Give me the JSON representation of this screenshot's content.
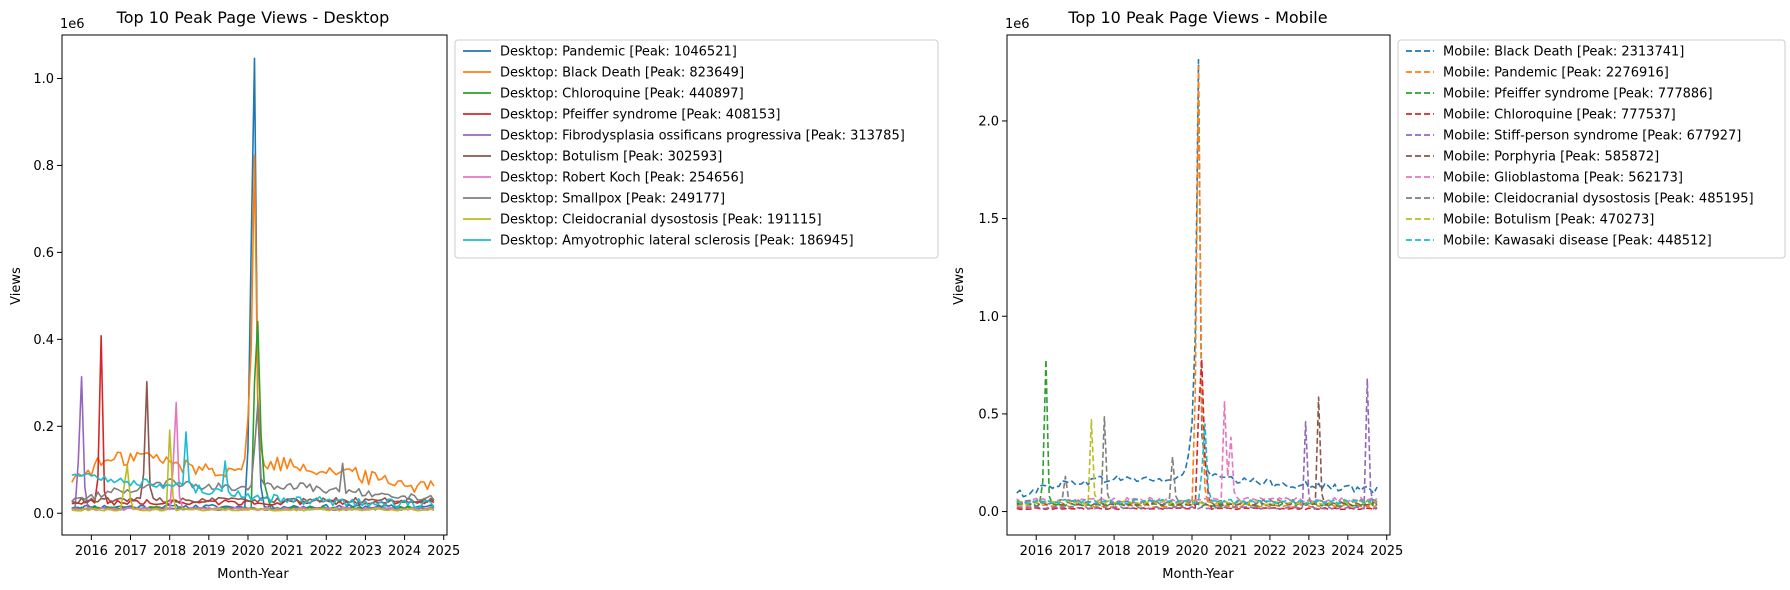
{
  "chart_data": [
    {
      "type": "line",
      "title": "Top 10 Peak Page Views - Desktop",
      "xlabel": "Month-Year",
      "ylabel": "Views",
      "y_offset_label": "1e6",
      "y_scale_factor": 1000000,
      "xlim": [
        "2015-04",
        "2025-02"
      ],
      "ylim": [
        -50000,
        1100000
      ],
      "x_ticks": [
        "2016",
        "2017",
        "2018",
        "2019",
        "2020",
        "2021",
        "2022",
        "2023",
        "2024",
        "2025"
      ],
      "y_ticks": [
        0,
        200000,
        400000,
        600000,
        800000,
        1000000
      ],
      "y_tick_labels": [
        "0.0",
        "0.2",
        "0.4",
        "0.6",
        "0.8",
        "1.0"
      ],
      "legend_position": "outside-right",
      "line_style": "solid",
      "series": [
        {
          "name": "Desktop: Pandemic [Peak: 1046521]",
          "color": "#1f77b4",
          "baseline": 15000,
          "noise": 5000,
          "events": [
            [
              "2020-01",
              150000
            ],
            [
              "2020-02",
              620000
            ],
            [
              "2020-03",
              1046521
            ],
            [
              "2020-04",
              250000
            ],
            [
              "2020-05",
              60000
            ]
          ]
        },
        {
          "name": "Desktop: Black Death [Peak: 823649]",
          "color": "#ff7f0e",
          "baseline": 110000,
          "noise": 18000,
          "trend": [
            [
              2015.6,
              80000
            ],
            [
              2016.2,
              115000
            ],
            [
              2017.3,
              135000
            ],
            [
              2018.5,
              105000
            ],
            [
              2019.5,
              100000
            ],
            [
              2020.0,
              110000
            ],
            [
              2021.0,
              115000
            ],
            [
              2022.0,
              100000
            ],
            [
              2023.0,
              85000
            ],
            [
              2024.0,
              70000
            ],
            [
              2024.7,
              60000
            ]
          ],
          "events": [
            [
              "2020-01",
              220000
            ],
            [
              "2020-02",
              380000
            ],
            [
              "2020-03",
              823649
            ],
            [
              "2020-04",
              270000
            ],
            [
              "2020-05",
              150000
            ]
          ]
        },
        {
          "name": "Desktop: Chloroquine [Peak: 440897]",
          "color": "#2ca02c",
          "baseline": 12000,
          "noise": 3000,
          "events": [
            [
              "2020-03",
              300000
            ],
            [
              "2020-04",
              440897
            ],
            [
              "2020-05",
              180000
            ],
            [
              "2020-06",
              70000
            ],
            [
              "2020-07",
              40000
            ]
          ]
        },
        {
          "name": "Desktop: Pfeiffer syndrome [Peak: 408153]",
          "color": "#d62728",
          "baseline": 25000,
          "noise": 6000,
          "events": [
            [
              "2016-03",
              80000
            ],
            [
              "2016-04",
              408153
            ],
            [
              "2016-05",
              50000
            ]
          ]
        },
        {
          "name": "Desktop: Fibrodysplasia ossificans progressiva [Peak: 313785]",
          "color": "#9467bd",
          "baseline": 10000,
          "noise": 3000,
          "events": [
            [
              "2015-09",
              120000
            ],
            [
              "2015-10",
              313785
            ],
            [
              "2015-11",
              60000
            ]
          ]
        },
        {
          "name": "Desktop: Botulism [Peak: 302593]",
          "color": "#8c564b",
          "baseline": 30000,
          "noise": 6000,
          "events": [
            [
              "2017-05",
              90000
            ],
            [
              "2017-06",
              302593
            ],
            [
              "2017-07",
              60000
            ]
          ]
        },
        {
          "name": "Desktop: Robert Koch [Peak: 254656]",
          "color": "#e377c2",
          "baseline": 10000,
          "noise": 3000,
          "events": [
            [
              "2018-02",
              100000
            ],
            [
              "2018-03",
              254656
            ],
            [
              "2018-04",
              40000
            ]
          ]
        },
        {
          "name": "Desktop: Smallpox [Peak: 249177]",
          "color": "#7f7f7f",
          "baseline": 55000,
          "noise": 9000,
          "trend": [
            [
              2015.6,
              30000
            ],
            [
              2016.5,
              50000
            ],
            [
              2018.0,
              70000
            ],
            [
              2019.5,
              60000
            ],
            [
              2021.0,
              65000
            ],
            [
              2022.5,
              50000
            ],
            [
              2024.7,
              35000
            ]
          ],
          "events": [
            [
              "2020-03",
              150000
            ],
            [
              "2020-04",
              249177
            ],
            [
              "2020-05",
              80000
            ],
            [
              "2022-06",
              115000
            ]
          ]
        },
        {
          "name": "Desktop: Cleidocranial dysostosis [Peak: 191115]",
          "color": "#bcbd22",
          "baseline": 8000,
          "noise": 2500,
          "events": [
            [
              "2016-11",
              60000
            ],
            [
              "2016-12",
              110000
            ],
            [
              "2017-01",
              30000
            ],
            [
              "2018-01",
              191115
            ],
            [
              "2018-02",
              40000
            ]
          ]
        },
        {
          "name": "Desktop: Amyotrophic lateral sclerosis [Peak: 186945]",
          "color": "#17becf",
          "baseline": 60000,
          "noise": 10000,
          "trend": [
            [
              2015.6,
              90000
            ],
            [
              2016.5,
              75000
            ],
            [
              2018.0,
              65000
            ],
            [
              2019.5,
              45000
            ],
            [
              2021.0,
              30000
            ],
            [
              2023.0,
              25000
            ],
            [
              2024.7,
              20000
            ]
          ],
          "events": [
            [
              "2018-06",
              186945
            ],
            [
              "2018-07",
              70000
            ],
            [
              "2019-06",
              120000
            ],
            [
              "2019-07",
              50000
            ]
          ]
        }
      ]
    },
    {
      "type": "line",
      "title": "Top 10 Peak Page Views - Mobile",
      "xlabel": "Month-Year",
      "ylabel": "Views",
      "y_offset_label": "1e6",
      "y_scale_factor": 1000000,
      "xlim": [
        "2015-04",
        "2025-02"
      ],
      "ylim": [
        -120000,
        2440000
      ],
      "x_ticks": [
        "2016",
        "2017",
        "2018",
        "2019",
        "2020",
        "2021",
        "2022",
        "2023",
        "2024",
        "2025"
      ],
      "y_ticks": [
        0,
        500000,
        1000000,
        1500000,
        2000000
      ],
      "y_tick_labels": [
        "0.0",
        "0.5",
        "1.0",
        "1.5",
        "2.0"
      ],
      "legend_position": "outside-right",
      "line_style": "dashed",
      "series": [
        {
          "name": "Mobile: Black Death [Peak: 2313741]",
          "color": "#1f77b4",
          "baseline": 150000,
          "noise": 20000,
          "trend": [
            [
              2015.6,
              90000
            ],
            [
              2016.5,
              140000
            ],
            [
              2018.0,
              170000
            ],
            [
              2019.5,
              160000
            ],
            [
              2020.0,
              220000
            ],
            [
              2021.0,
              160000
            ],
            [
              2022.5,
              140000
            ],
            [
              2024.7,
              110000
            ]
          ],
          "events": [
            [
              "2019-12",
              300000
            ],
            [
              "2020-01",
              450000
            ],
            [
              "2020-02",
              900000
            ],
            [
              "2020-03",
              2313741
            ],
            [
              "2020-04",
              400000
            ],
            [
              "2020-05",
              250000
            ]
          ]
        },
        {
          "name": "Mobile: Pandemic [Peak: 2276916]",
          "color": "#ff7f0e",
          "baseline": 30000,
          "noise": 8000,
          "events": [
            [
              "2020-02",
              600000
            ],
            [
              "2020-03",
              2276916
            ],
            [
              "2020-04",
              550000
            ],
            [
              "2020-05",
              120000
            ]
          ]
        },
        {
          "name": "Mobile: Pfeiffer syndrome [Peak: 777886]",
          "color": "#2ca02c",
          "baseline": 35000,
          "noise": 8000,
          "events": [
            [
              "2016-03",
              150000
            ],
            [
              "2016-04",
              777886
            ],
            [
              "2016-05",
              80000
            ]
          ]
        },
        {
          "name": "Mobile: Chloroquine [Peak: 777537]",
          "color": "#d62728",
          "baseline": 15000,
          "noise": 4000,
          "events": [
            [
              "2020-03",
              500000
            ],
            [
              "2020-04",
              777537
            ],
            [
              "2020-05",
              280000
            ],
            [
              "2020-06",
              90000
            ]
          ]
        },
        {
          "name": "Mobile: Stiff-person syndrome [Peak: 677927]",
          "color": "#9467bd",
          "baseline": 20000,
          "noise": 6000,
          "events": [
            [
              "2022-12",
              460000
            ],
            [
              "2023-01",
              80000
            ],
            [
              "2024-07",
              677927
            ],
            [
              "2024-08",
              120000
            ]
          ]
        },
        {
          "name": "Mobile: Porphyria [Peak: 585872]",
          "color": "#8c564b",
          "baseline": 40000,
          "noise": 8000,
          "events": [
            [
              "2023-04",
              585872
            ],
            [
              "2023-05",
              90000
            ]
          ]
        },
        {
          "name": "Mobile: Glioblastoma [Peak: 562173]",
          "color": "#e377c2",
          "baseline": 60000,
          "noise": 12000,
          "events": [
            [
              "2020-11",
              562173
            ],
            [
              "2020-12",
              180000
            ],
            [
              "2021-01",
              380000
            ],
            [
              "2021-02",
              100000
            ]
          ]
        },
        {
          "name": "Mobile: Cleidocranial dysostosis [Peak: 485195]",
          "color": "#7f7f7f",
          "baseline": 50000,
          "noise": 12000,
          "events": [
            [
              "2016-10",
              180000
            ],
            [
              "2016-11",
              60000
            ],
            [
              "2017-10",
              485195
            ],
            [
              "2017-11",
              90000
            ],
            [
              "2019-07",
              280000
            ],
            [
              "2019-08",
              80000
            ]
          ]
        },
        {
          "name": "Mobile: Botulism [Peak: 470273]",
          "color": "#bcbd22",
          "baseline": 45000,
          "noise": 10000,
          "events": [
            [
              "2017-06",
              470273
            ],
            [
              "2017-07",
              90000
            ]
          ]
        },
        {
          "name": "Mobile: Kawasaki disease [Peak: 448512]",
          "color": "#17becf",
          "baseline": 50000,
          "noise": 12000,
          "events": [
            [
              "2020-04",
              200000
            ],
            [
              "2020-05",
              448512
            ],
            [
              "2020-06",
              120000
            ]
          ]
        }
      ]
    }
  ]
}
